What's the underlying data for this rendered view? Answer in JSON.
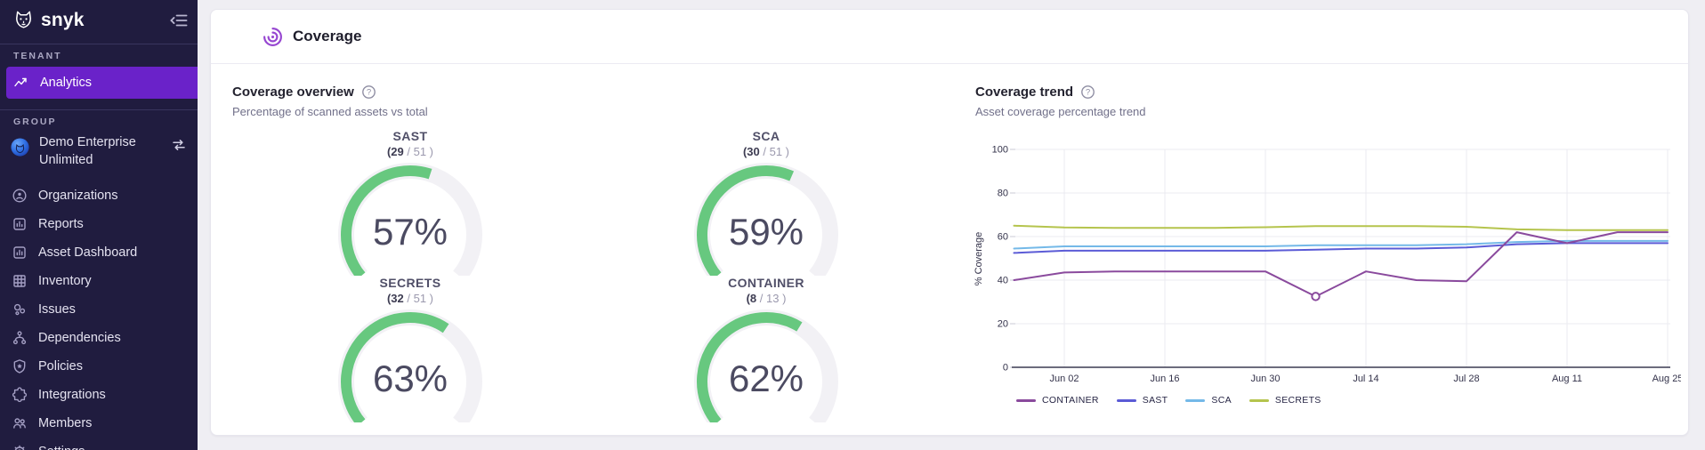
{
  "sidebar": {
    "logo_text": "snyk",
    "tenant_label": "TENANT",
    "group_label": "GROUP",
    "tenant_items": [
      {
        "label": "Analytics",
        "icon": "analytics-icon",
        "active": true
      }
    ],
    "group_entity": {
      "name": "Demo Enterprise Unlimited",
      "icon": "org-avatar-icon",
      "switcher_icon": "swap-icon"
    },
    "group_items": [
      {
        "label": "Organizations",
        "icon": "organizations-icon"
      },
      {
        "label": "Reports",
        "icon": "reports-icon"
      },
      {
        "label": "Asset Dashboard",
        "icon": "asset-dashboard-icon"
      },
      {
        "label": "Inventory",
        "icon": "inventory-icon"
      },
      {
        "label": "Issues",
        "icon": "issues-icon"
      },
      {
        "label": "Dependencies",
        "icon": "dependencies-icon"
      },
      {
        "label": "Policies",
        "icon": "policies-icon"
      },
      {
        "label": "Integrations",
        "icon": "integrations-icon"
      },
      {
        "label": "Members",
        "icon": "members-icon"
      },
      {
        "label": "Settings",
        "icon": "settings-icon"
      }
    ],
    "colors": {
      "bg": "#201c3f",
      "active": "#6a22c9"
    }
  },
  "main": {
    "page_title": "Coverage",
    "overview": {
      "title": "Coverage overview",
      "subtitle": "Percentage of scanned assets vs total",
      "arc_color": "#67c87f",
      "track_color": "#f2f1f5",
      "gauges": [
        {
          "name": "SAST",
          "scanned": 29,
          "total": 51,
          "percent": 57
        },
        {
          "name": "SCA",
          "scanned": 30,
          "total": 51,
          "percent": 59
        },
        {
          "name": "SECRETS",
          "scanned": 32,
          "total": 51,
          "percent": 63
        },
        {
          "name": "CONTAINER",
          "scanned": 8,
          "total": 13,
          "percent": 62
        }
      ]
    },
    "trend": {
      "title": "Coverage trend",
      "subtitle": "Asset coverage percentage trend",
      "chart_data": {
        "type": "line",
        "title": "Coverage trend",
        "xlabel": "",
        "ylabel": "% Coverage",
        "ylim": [
          0,
          100
        ],
        "yticks": [
          0,
          20,
          40,
          60,
          80,
          100
        ],
        "grid": true,
        "legend_position": "bottom",
        "x_tick_labels": [
          "Jun 02",
          "Jun 16",
          "Jun 30",
          "Jul 14",
          "Jul 28",
          "Aug 11",
          "Aug 25"
        ],
        "x": [
          "May 26",
          "Jun 02",
          "Jun 09",
          "Jun 16",
          "Jun 23",
          "Jun 30",
          "Jul 07",
          "Jul 14",
          "Jul 21",
          "Jul 28",
          "Aug 04",
          "Aug 11",
          "Aug 18",
          "Aug 25"
        ],
        "series": [
          {
            "name": "CONTAINER",
            "color": "#8a4a9d",
            "values": [
              40,
              43.5,
              44,
              44,
              44,
              44,
              32.5,
              44,
              40,
              39.5,
              62,
              57,
              62,
              62
            ]
          },
          {
            "name": "SAST",
            "color": "#5b5bd6",
            "values": [
              52.5,
              53.5,
              53.5,
              53.5,
              53.5,
              53.5,
              54,
              54.5,
              54.5,
              55,
              56.5,
              57,
              57,
              57
            ]
          },
          {
            "name": "SCA",
            "color": "#74b9e8",
            "values": [
              54.5,
              55.5,
              55.5,
              55.5,
              55.5,
              55.5,
              56,
              56,
              56,
              56.5,
              57.5,
              58,
              58,
              58
            ]
          },
          {
            "name": "SECRETS",
            "color": "#b5c44d",
            "values": [
              65,
              64.2,
              64,
              64,
              64,
              64.3,
              64.8,
              64.8,
              64.8,
              64.5,
              63.3,
              63,
              63,
              63
            ]
          }
        ],
        "marker": {
          "series": "CONTAINER",
          "index": 6
        }
      }
    }
  }
}
